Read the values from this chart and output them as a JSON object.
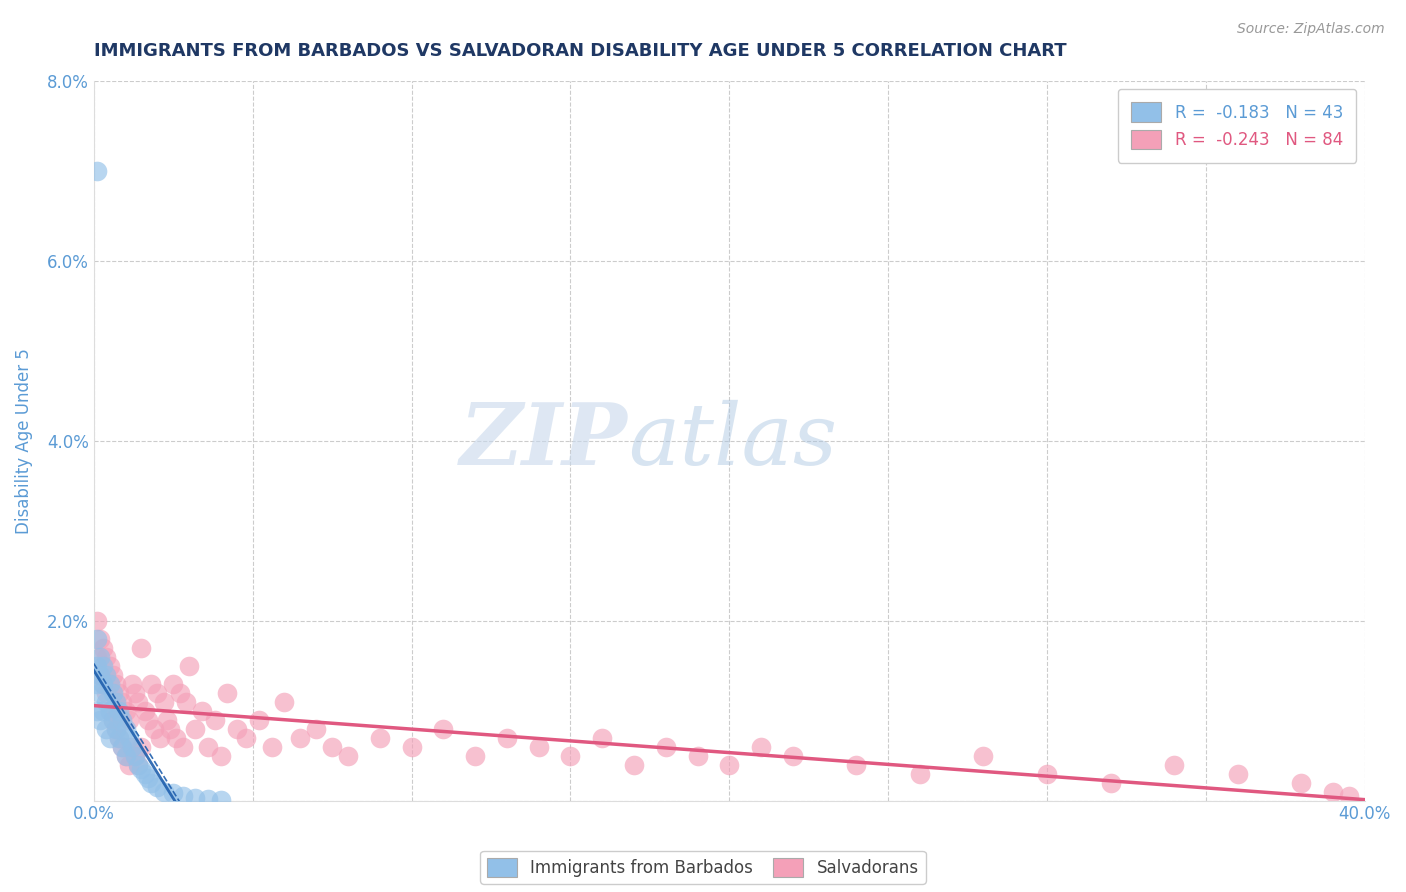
{
  "title": "IMMIGRANTS FROM BARBADOS VS SALVADORAN DISABILITY AGE UNDER 5 CORRELATION CHART",
  "source_text": "Source: ZipAtlas.com",
  "ylabel": "Disability Age Under 5",
  "xlim": [
    0.0,
    0.4
  ],
  "ylim": [
    0.0,
    0.08
  ],
  "xtick_positions": [
    0.0,
    0.05,
    0.1,
    0.15,
    0.2,
    0.25,
    0.3,
    0.35,
    0.4
  ],
  "xticklabels": [
    "0.0%",
    "",
    "",
    "",
    "",
    "",
    "",
    "",
    "40.0%"
  ],
  "ytick_positions": [
    0.0,
    0.02,
    0.04,
    0.06,
    0.08
  ],
  "yticklabels": [
    "",
    "2.0%",
    "4.0%",
    "6.0%",
    "8.0%"
  ],
  "legend_line1": "R =  -0.183   N = 43",
  "legend_line2": "R =  -0.243   N = 84",
  "blue_color": "#92C0E8",
  "pink_color": "#F4A0B8",
  "blue_line_color": "#1F5FAD",
  "pink_line_color": "#E05880",
  "title_color": "#1F3864",
  "axis_label_color": "#5B9BD5",
  "tick_color": "#5B9BD5",
  "watermark_zip": "ZIP",
  "watermark_atlas": "atlas",
  "grid_color": "#CCCCCC",
  "blue_scatter_x": [
    0.001,
    0.001,
    0.001,
    0.001,
    0.002,
    0.002,
    0.002,
    0.002,
    0.003,
    0.003,
    0.003,
    0.004,
    0.004,
    0.004,
    0.005,
    0.005,
    0.005,
    0.006,
    0.006,
    0.007,
    0.007,
    0.008,
    0.008,
    0.009,
    0.009,
    0.01,
    0.01,
    0.011,
    0.012,
    0.013,
    0.014,
    0.015,
    0.016,
    0.017,
    0.018,
    0.02,
    0.022,
    0.025,
    0.028,
    0.032,
    0.036,
    0.04,
    0.001
  ],
  "blue_scatter_y": [
    0.018,
    0.015,
    0.013,
    0.01,
    0.016,
    0.014,
    0.012,
    0.009,
    0.015,
    0.013,
    0.01,
    0.014,
    0.011,
    0.008,
    0.013,
    0.01,
    0.007,
    0.012,
    0.009,
    0.011,
    0.008,
    0.01,
    0.007,
    0.009,
    0.006,
    0.008,
    0.005,
    0.007,
    0.006,
    0.005,
    0.004,
    0.0035,
    0.003,
    0.0025,
    0.002,
    0.0015,
    0.001,
    0.0008,
    0.0005,
    0.0003,
    0.0002,
    0.0001,
    0.07
  ],
  "pink_scatter_x": [
    0.001,
    0.001,
    0.002,
    0.002,
    0.003,
    0.003,
    0.004,
    0.004,
    0.005,
    0.005,
    0.006,
    0.006,
    0.007,
    0.007,
    0.008,
    0.008,
    0.009,
    0.009,
    0.01,
    0.01,
    0.011,
    0.011,
    0.012,
    0.012,
    0.013,
    0.013,
    0.014,
    0.014,
    0.015,
    0.015,
    0.016,
    0.017,
    0.018,
    0.019,
    0.02,
    0.021,
    0.022,
    0.023,
    0.024,
    0.025,
    0.026,
    0.027,
    0.028,
    0.029,
    0.03,
    0.032,
    0.034,
    0.036,
    0.038,
    0.04,
    0.042,
    0.045,
    0.048,
    0.052,
    0.056,
    0.06,
    0.065,
    0.07,
    0.075,
    0.08,
    0.09,
    0.1,
    0.11,
    0.12,
    0.13,
    0.14,
    0.15,
    0.16,
    0.17,
    0.18,
    0.19,
    0.2,
    0.21,
    0.22,
    0.24,
    0.26,
    0.28,
    0.3,
    0.32,
    0.34,
    0.36,
    0.38,
    0.39,
    0.395
  ],
  "pink_scatter_y": [
    0.02,
    0.016,
    0.018,
    0.014,
    0.017,
    0.013,
    0.016,
    0.012,
    0.015,
    0.01,
    0.014,
    0.009,
    0.013,
    0.008,
    0.012,
    0.007,
    0.011,
    0.006,
    0.01,
    0.005,
    0.009,
    0.004,
    0.013,
    0.006,
    0.012,
    0.005,
    0.011,
    0.004,
    0.017,
    0.006,
    0.01,
    0.009,
    0.013,
    0.008,
    0.012,
    0.007,
    0.011,
    0.009,
    0.008,
    0.013,
    0.007,
    0.012,
    0.006,
    0.011,
    0.015,
    0.008,
    0.01,
    0.006,
    0.009,
    0.005,
    0.012,
    0.008,
    0.007,
    0.009,
    0.006,
    0.011,
    0.007,
    0.008,
    0.006,
    0.005,
    0.007,
    0.006,
    0.008,
    0.005,
    0.007,
    0.006,
    0.005,
    0.007,
    0.004,
    0.006,
    0.005,
    0.004,
    0.006,
    0.005,
    0.004,
    0.003,
    0.005,
    0.003,
    0.002,
    0.004,
    0.003,
    0.002,
    0.001,
    0.0005
  ]
}
